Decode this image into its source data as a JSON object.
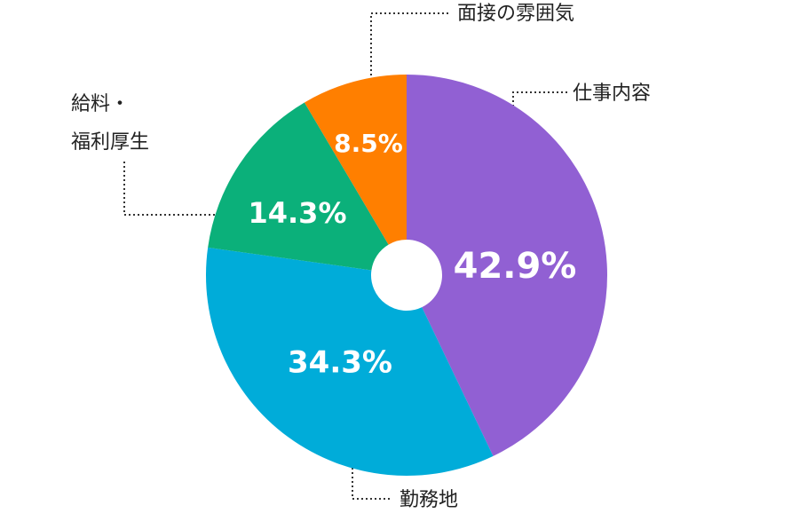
{
  "chart_data": {
    "type": "donut",
    "categories": [
      "仕事内容",
      "勤務地",
      "給料・\n福利厚生",
      "面接の雰囲気"
    ],
    "values": [
      42.9,
      34.3,
      14.3,
      8.5
    ],
    "value_labels": [
      "42.9%",
      "34.3%",
      "14.3%",
      "8.5%"
    ],
    "colors": [
      "#9160d3",
      "#00acd9",
      "#0bb07a",
      "#ff7f00"
    ]
  }
}
